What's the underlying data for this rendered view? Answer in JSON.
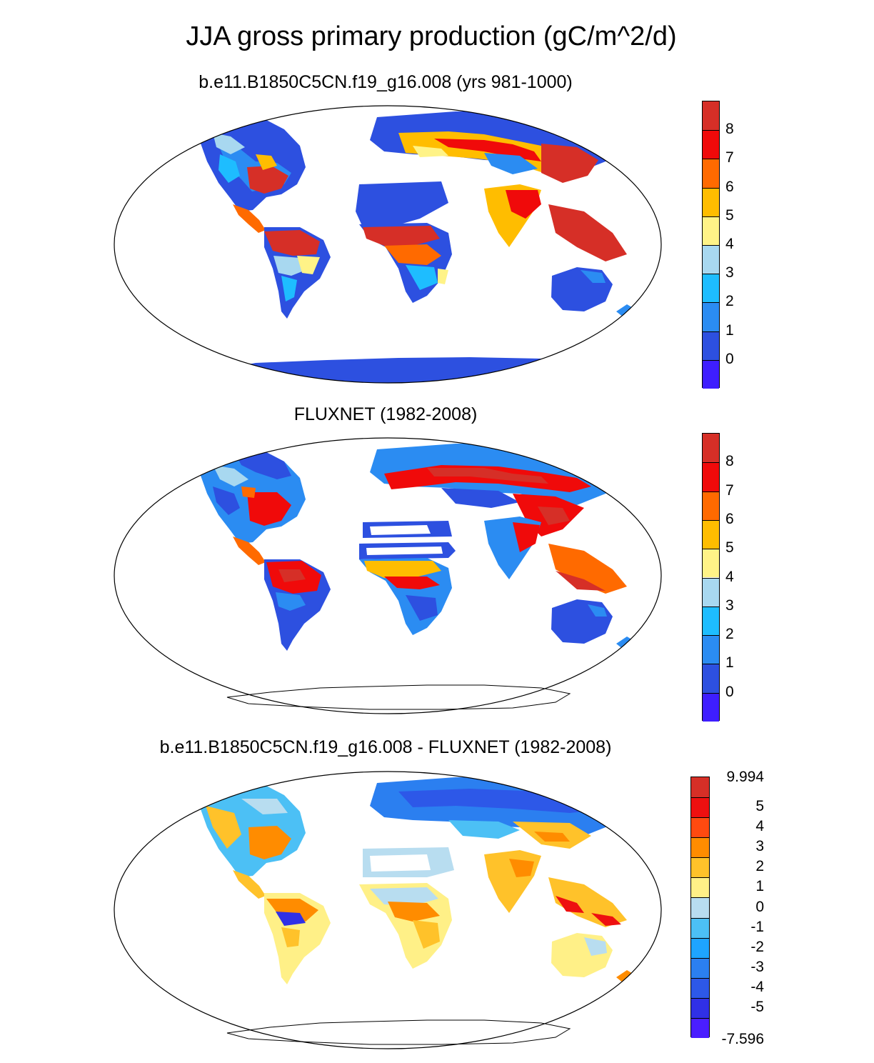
{
  "title": "JJA gross primary production (gC/m^2/d)",
  "panels": [
    {
      "title": "b.e11.B1850C5CN.f19_g16.008 (yrs 981-1000)",
      "colorbar": {
        "labels": [
          "8",
          "7",
          "6",
          "5",
          "4",
          "3",
          "2",
          "1",
          "0"
        ],
        "colors": [
          "#d62f27",
          "#f00a0a",
          "#ff6a00",
          "#ffbd00",
          "#fff387",
          "#a8d8f0",
          "#1ebdff",
          "#2b8cf2",
          "#2d50e0",
          "#3e1eff"
        ]
      }
    },
    {
      "title": "FLUXNET (1982-2008)",
      "colorbar": {
        "labels": [
          "8",
          "7",
          "6",
          "5",
          "4",
          "3",
          "2",
          "1",
          "0"
        ],
        "colors": [
          "#d62f27",
          "#f00a0a",
          "#ff6a00",
          "#ffbd00",
          "#fff387",
          "#a8d8f0",
          "#1ebdff",
          "#2b8cf2",
          "#2d50e0",
          "#3e1eff"
        ]
      }
    },
    {
      "title": "b.e11.B1850C5CN.f19_g16.008 - FLUXNET (1982-2008)",
      "colorbar": {
        "labels": [
          "9.994",
          "5",
          "4",
          "3",
          "2",
          "1",
          "0",
          "-1",
          "-2",
          "-3",
          "-4",
          "-5",
          "-7.596"
        ],
        "colors": [
          "#d62f27",
          "#ee1010",
          "#ff4a10",
          "#ff8c00",
          "#ffc22a",
          "#fff087",
          "#b8ddf0",
          "#4cc0f5",
          "#1ea4ff",
          "#2b7ff0",
          "#2d58e8",
          "#3030e6",
          "#4a1eff"
        ]
      }
    }
  ]
}
